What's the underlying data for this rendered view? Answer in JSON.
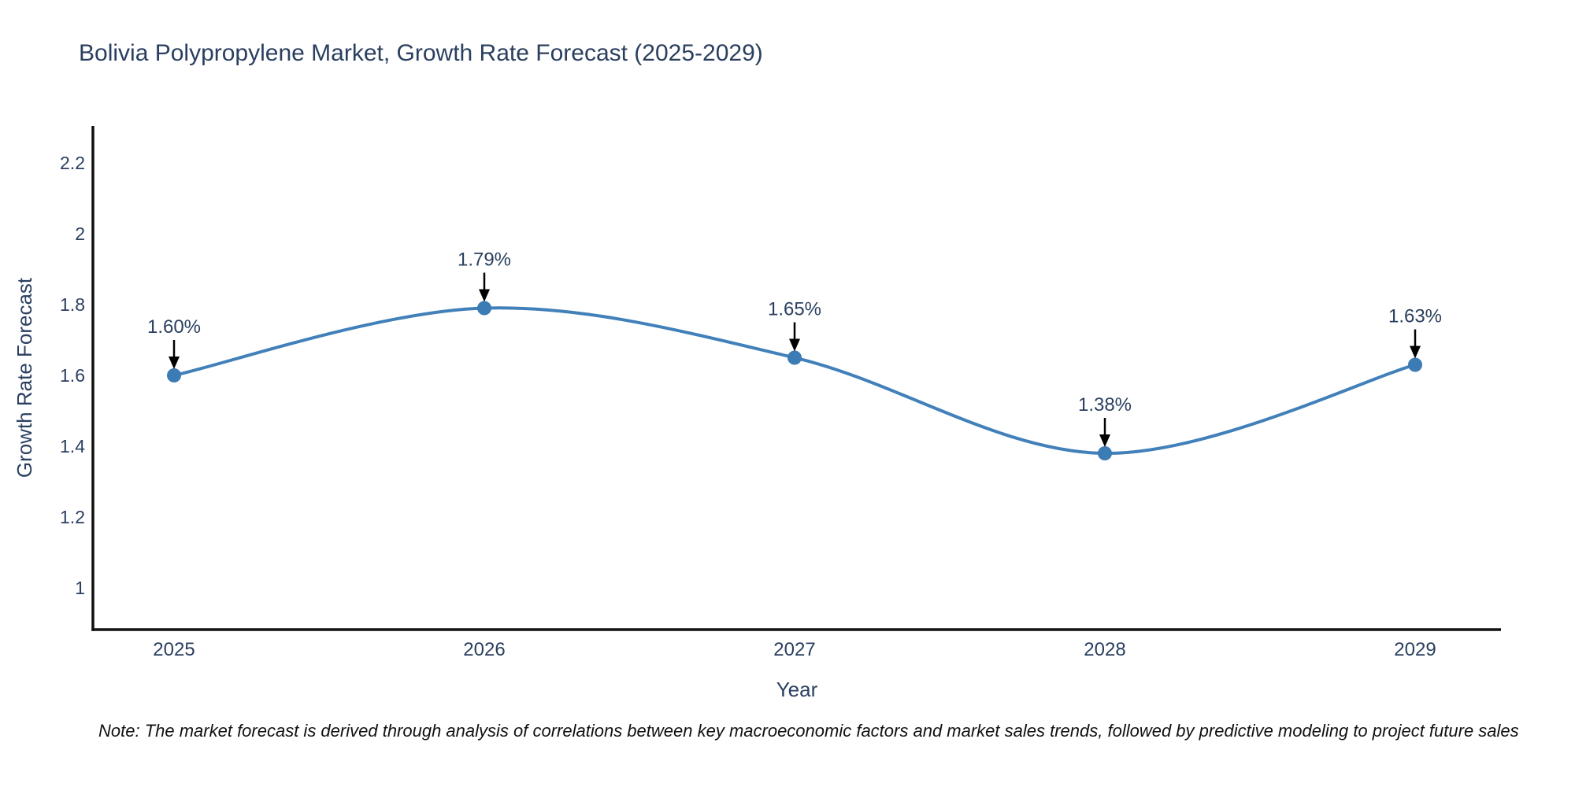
{
  "title": "Bolivia Polypropylene Market, Growth Rate Forecast (2025-2029)",
  "note": "Note: The market forecast is derived through analysis of correlations between key macroeconomic factors and market sales trends, followed by predictive modeling to project future sales",
  "chart_data": {
    "type": "line",
    "line_shape": "spline",
    "title": "Bolivia Polypropylene Market, Growth Rate Forecast (2025-2029)",
    "xlabel": "Year",
    "ylabel": "Growth Rate Forecast",
    "x": [
      2025,
      2026,
      2027,
      2028,
      2029
    ],
    "values": [
      1.6,
      1.79,
      1.65,
      1.38,
      1.63
    ],
    "point_labels": [
      "1.60%",
      "1.79%",
      "1.65%",
      "1.38%",
      "1.63%"
    ],
    "xticks": [
      "2025",
      "2026",
      "2027",
      "2028",
      "2029"
    ],
    "yticks": [
      "1",
      "1.2",
      "1.4",
      "1.6",
      "1.8",
      "2",
      "2.2"
    ],
    "ytick_values": [
      1,
      1.2,
      1.4,
      1.6,
      1.8,
      2,
      2.2
    ],
    "ylim": [
      0.88,
      2.42
    ],
    "grid": false,
    "legend": "none",
    "annotations_have_arrows": true,
    "colors": {
      "line": "#4180b9",
      "marker": "#3c7cb5",
      "axis": "#111111",
      "text": "#2a3f5f",
      "arrow": "#000000",
      "background": "#ffffff"
    }
  }
}
